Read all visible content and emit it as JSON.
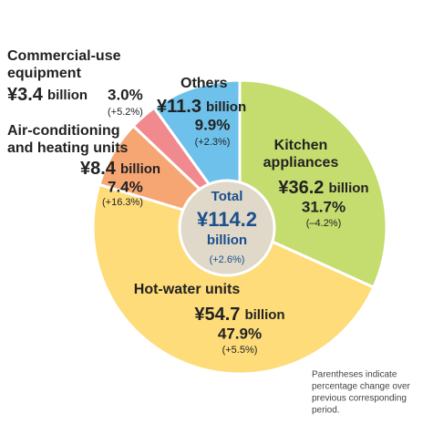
{
  "chart_data": {
    "type": "pie",
    "categories": [
      "Kitchen appliances",
      "Hot-water units",
      "Air-conditioning and heating units",
      "Commercial-use equipment",
      "Others"
    ],
    "name_lines": [
      [
        "Kitchen",
        "appliances"
      ],
      [
        "Hot-water units"
      ],
      [
        "Air-conditioning",
        "and heating units"
      ],
      [
        "Commercial-use",
        "equipment"
      ],
      [
        "Others"
      ]
    ],
    "values": [
      31.7,
      47.9,
      7.4,
      3.0,
      9.9
    ],
    "value_labels": [
      "31.7%",
      "47.9%",
      "7.4%",
      "3.0%",
      "9.9%"
    ],
    "amount_labels": [
      "¥36.2",
      "¥54.7",
      "¥8.4",
      "¥3.4",
      "¥11.3"
    ],
    "amount_unit": "billion",
    "changes": [
      "(–4.2%)",
      "(+5.5%)",
      "(+16.3%)",
      "(+5.2%)",
      "(+2.3%)"
    ],
    "colors": [
      "#c5dc6e",
      "#fedc7a",
      "#f6a673",
      "#f08a8f",
      "#6ec1ea"
    ],
    "total": {
      "title": "Total",
      "amount": "¥114.2",
      "unit": "billion",
      "change": "(+2.6%)"
    },
    "note_lines": [
      "Parentheses indicate",
      "percentage change over",
      "previous corresponding",
      "period."
    ]
  }
}
